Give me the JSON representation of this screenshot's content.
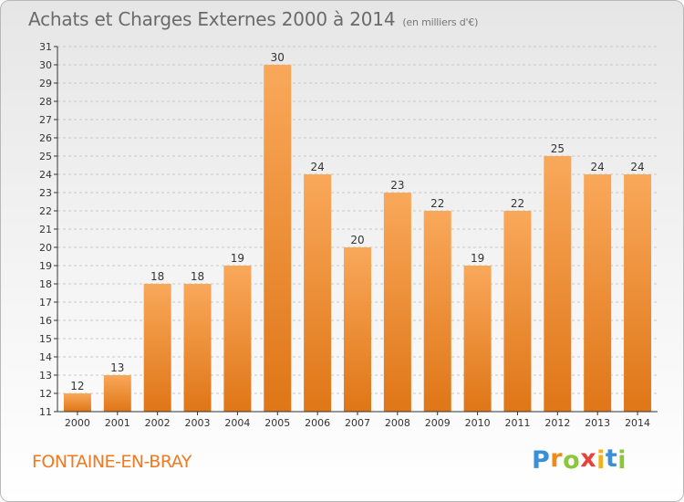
{
  "header": {
    "title": "Achats et Charges Externes 2000 à 2014",
    "subtitle": "(en milliers d'€)"
  },
  "footer": {
    "town": "FONTAINE-EN-BRAY",
    "logo_letters": [
      {
        "char": "P",
        "color": "#3a8fd6"
      },
      {
        "char": "r",
        "color": "#f08a1c"
      },
      {
        "char": "o",
        "color": "#8cc63f"
      },
      {
        "char": "x",
        "color": "#e8423a"
      },
      {
        "char": "i",
        "color": "#f2b21b"
      },
      {
        "char": "t",
        "color": "#3a8fd6"
      },
      {
        "char": "i",
        "color": "#8cc63f"
      }
    ]
  },
  "colors": {
    "bar_light": "#f9a85a",
    "bar_dark": "#df7617",
    "axis": "#333333",
    "grid": "#c8c8c8",
    "label": "#333333"
  },
  "chart_data": {
    "type": "bar",
    "title": "Achats et Charges Externes 2000 à 2014",
    "subtitle": "(en milliers d'€)",
    "categories": [
      "2000",
      "2001",
      "2002",
      "2003",
      "2004",
      "2005",
      "2006",
      "2007",
      "2008",
      "2009",
      "2010",
      "2011",
      "2012",
      "2013",
      "2014"
    ],
    "values": [
      12,
      13,
      18,
      18,
      19,
      30,
      24,
      20,
      23,
      22,
      19,
      22,
      25,
      24,
      24
    ],
    "ylim": [
      11,
      31
    ],
    "yticks": [
      11,
      12,
      13,
      14,
      15,
      16,
      17,
      18,
      19,
      20,
      21,
      22,
      23,
      24,
      25,
      26,
      27,
      28,
      29,
      30,
      31
    ],
    "grid": "horizontal",
    "data_labels": true
  }
}
